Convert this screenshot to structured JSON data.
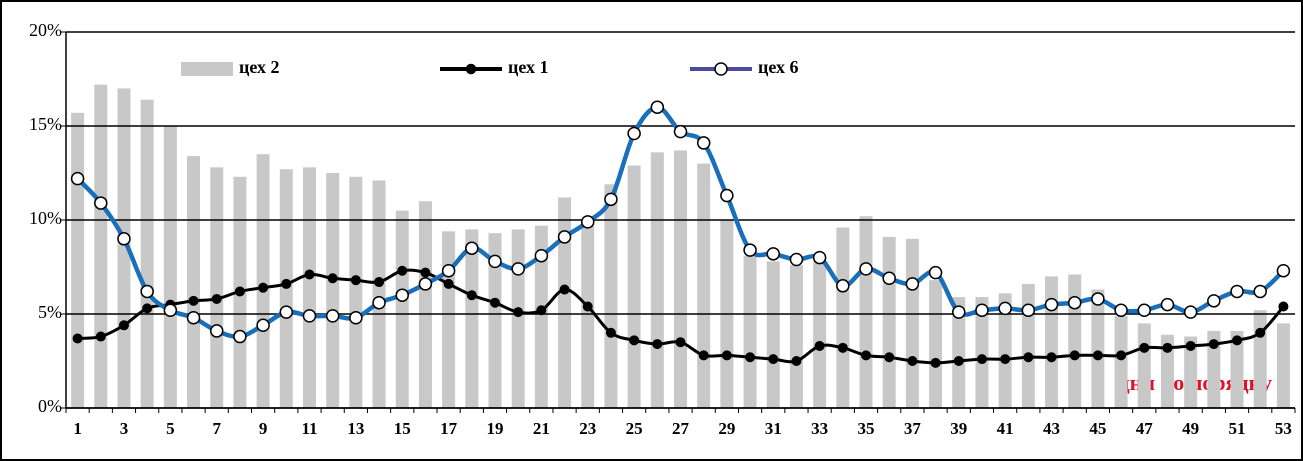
{
  "chart_data": {
    "type": "bar-line",
    "categories": [
      "1",
      null,
      "3",
      null,
      "5",
      null,
      "7",
      null,
      "9",
      null,
      "11",
      null,
      "13",
      null,
      "15",
      null,
      "17",
      null,
      "19",
      null,
      "21",
      null,
      "23",
      null,
      "25",
      null,
      "27",
      null,
      "29",
      null,
      "31",
      null,
      "33",
      null,
      "35",
      null,
      "37",
      null,
      "39",
      null,
      "41",
      null,
      "43",
      null,
      "45",
      null,
      "47",
      null,
      "49",
      null,
      "51",
      null,
      "53"
    ],
    "series": [
      {
        "name": "цех 2",
        "kind": "bar",
        "color": "#c8c8c8",
        "values": [
          15.7,
          17.2,
          17.0,
          16.4,
          15.0,
          13.4,
          12.8,
          12.3,
          13.5,
          12.7,
          12.8,
          12.5,
          12.3,
          12.1,
          10.5,
          11.0,
          9.4,
          9.5,
          9.3,
          9.5,
          9.7,
          11.2,
          9.9,
          11.9,
          12.9,
          13.6,
          13.7,
          13.0,
          10.0,
          8.1,
          7.8,
          7.6,
          7.8,
          9.6,
          10.2,
          9.1,
          9.0,
          6.8,
          5.9,
          5.9,
          6.1,
          6.6,
          7.0,
          7.1,
          6.3,
          4.9,
          4.5,
          3.9,
          3.8,
          4.1,
          4.1,
          5.2,
          4.5
        ]
      },
      {
        "name": "цех 1",
        "kind": "line",
        "color": "#000000",
        "values": [
          3.7,
          3.8,
          4.4,
          5.3,
          5.5,
          5.7,
          5.8,
          6.2,
          6.4,
          6.6,
          7.1,
          6.9,
          6.8,
          6.7,
          7.3,
          7.2,
          6.6,
          6.0,
          5.6,
          5.1,
          5.2,
          6.3,
          5.4,
          4.0,
          3.6,
          3.4,
          3.5,
          2.8,
          2.8,
          2.7,
          2.6,
          2.5,
          3.3,
          3.2,
          2.8,
          2.7,
          2.5,
          2.4,
          2.5,
          2.6,
          2.6,
          2.7,
          2.7,
          2.8,
          2.8,
          2.8,
          3.2,
          3.2,
          3.3,
          3.4,
          3.6,
          4.0,
          5.4
        ]
      },
      {
        "name": "цех 6",
        "kind": "line-open",
        "color": "#1a6fba",
        "values": [
          12.2,
          10.9,
          9.0,
          6.2,
          5.2,
          4.8,
          4.1,
          3.8,
          4.4,
          5.1,
          4.9,
          4.9,
          4.8,
          5.6,
          6.0,
          6.6,
          7.3,
          8.5,
          7.8,
          7.4,
          8.1,
          9.1,
          9.9,
          11.1,
          14.6,
          16.0,
          14.7,
          14.1,
          11.3,
          8.4,
          8.2,
          7.9,
          8.0,
          6.5,
          7.4,
          6.9,
          6.6,
          7.2,
          5.1,
          5.2,
          5.3,
          5.2,
          5.5,
          5.6,
          5.8,
          5.2,
          5.2,
          5.5,
          5.1,
          5.7,
          6.2,
          6.2,
          7.3
        ]
      }
    ],
    "ylim": [
      0,
      20
    ],
    "yticks": [
      {
        "value": 0,
        "label": "0%"
      },
      {
        "value": 5,
        "label": "5%"
      },
      {
        "value": 10,
        "label": "10%"
      },
      {
        "value": 15,
        "label": "15%"
      },
      {
        "value": 20,
        "label": "20%"
      }
    ],
    "grid": true,
    "annotation": "дни  по  порядку"
  }
}
